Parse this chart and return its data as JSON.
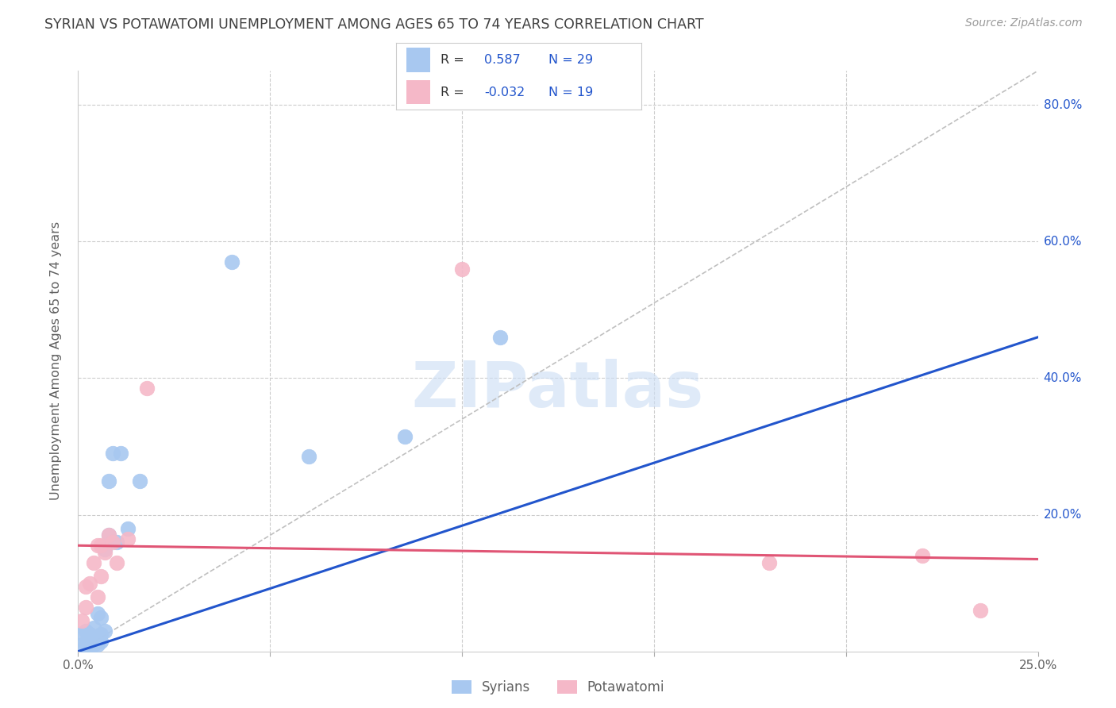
{
  "title": "SYRIAN VS POTAWATOMI UNEMPLOYMENT AMONG AGES 65 TO 74 YEARS CORRELATION CHART",
  "source": "Source: ZipAtlas.com",
  "ylabel": "Unemployment Among Ages 65 to 74 years",
  "xlim": [
    0,
    0.25
  ],
  "ylim": [
    0,
    0.85
  ],
  "legend_label_syrians": "Syrians",
  "legend_label_potawatomi": "Potawatomi",
  "syrian_color": "#a8c8f0",
  "potawatomi_color": "#f5b8c8",
  "syrian_line_color": "#2255cc",
  "potawatomi_line_color": "#e05575",
  "ref_line_color": "#c0c0c0",
  "watermark": "ZIPatlas",
  "background_color": "#ffffff",
  "grid_color": "#cccccc",
  "title_color": "#404040",
  "axis_label_color": "#606060",
  "right_tick_color": "#2255cc",
  "legend_R_label_color": "#333333",
  "legend_value_color": "#2255cc",
  "syrian_line_x0": 0.0,
  "syrian_line_y0": 0.0,
  "syrian_line_x1": 0.25,
  "syrian_line_y1": 0.46,
  "potawatomi_line_x0": 0.0,
  "potawatomi_line_y0": 0.155,
  "potawatomi_line_x1": 0.25,
  "potawatomi_line_y1": 0.135,
  "ref_line_x0": 0.0,
  "ref_line_y0": 0.0,
  "ref_line_x1": 0.25,
  "ref_line_y1": 0.85,
  "syrian_x": [
    0.001,
    0.001,
    0.002,
    0.002,
    0.003,
    0.003,
    0.003,
    0.004,
    0.004,
    0.004,
    0.005,
    0.005,
    0.005,
    0.006,
    0.006,
    0.006,
    0.007,
    0.007,
    0.008,
    0.008,
    0.009,
    0.01,
    0.011,
    0.013,
    0.016,
    0.04,
    0.06,
    0.085,
    0.11
  ],
  "syrian_y": [
    0.01,
    0.025,
    0.01,
    0.03,
    0.01,
    0.015,
    0.025,
    0.01,
    0.02,
    0.035,
    0.01,
    0.02,
    0.055,
    0.015,
    0.025,
    0.05,
    0.03,
    0.15,
    0.17,
    0.25,
    0.29,
    0.16,
    0.29,
    0.18,
    0.25,
    0.57,
    0.285,
    0.315,
    0.46
  ],
  "potawatomi_x": [
    0.001,
    0.002,
    0.002,
    0.003,
    0.004,
    0.005,
    0.005,
    0.006,
    0.006,
    0.007,
    0.008,
    0.009,
    0.01,
    0.013,
    0.018,
    0.1,
    0.18,
    0.22,
    0.235
  ],
  "potawatomi_y": [
    0.045,
    0.065,
    0.095,
    0.1,
    0.13,
    0.08,
    0.155,
    0.11,
    0.155,
    0.145,
    0.17,
    0.16,
    0.13,
    0.165,
    0.385,
    0.56,
    0.13,
    0.14,
    0.06
  ]
}
